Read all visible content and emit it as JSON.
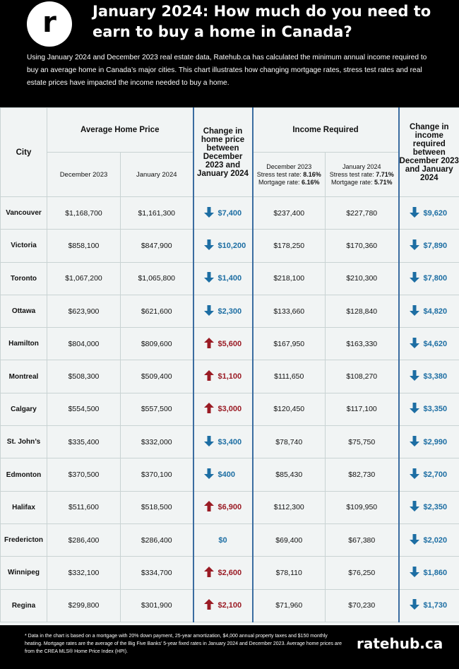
{
  "header": {
    "logo_letter": "r",
    "title": "January 2024: How much do you need to earn to buy a home in Canada?",
    "intro": "Using January 2024 and December 2023 real estate data, Ratehub.ca has calculated the minimum annual income required to buy an average home in Canada’s major cities. This chart illustrates how changing mortgage rates, stress test rates and real estate prices have impacted the income needed to buy a home."
  },
  "table": {
    "headers": {
      "city": "City",
      "avg_price": "Average Home Price",
      "dec_2023": "December 2023",
      "jan_2024": "January 2024",
      "price_change": "Change in home price between December 2023 and January 2024",
      "income_required": "Income Required",
      "inc_dec": {
        "month": "December 2023",
        "stress_label": "Stress test rate:",
        "stress_value": "8.16%",
        "mortgage_label": "Mortgage rate:",
        "mortgage_value": "6.16%"
      },
      "inc_jan": {
        "month": "January 2024",
        "stress_label": "Stress test rate:",
        "stress_value": "7.71%",
        "mortgage_label": "Mortgage rate:",
        "mortgage_value": "5.71%"
      },
      "income_change": "Change in income required between December 2023 and January 2024"
    },
    "colors": {
      "decrease": "#1d6ea3",
      "increase": "#9a1b24"
    }
  },
  "chart_data": {
    "type": "table",
    "title": "January 2024: How much do you need to earn to buy a home in Canada?",
    "columns": [
      "City",
      "Average Home Price December 2023",
      "Average Home Price January 2024",
      "Change in home price",
      "Income Required December 2023",
      "Income Required January 2024",
      "Change in income required"
    ],
    "rows": [
      {
        "city": "Vancouver",
        "price_dec": "$1,168,700",
        "price_jan": "$1,161,300",
        "price_change": "$7,400",
        "price_dir": "down",
        "income_dec": "$237,400",
        "income_jan": "$227,780",
        "income_change": "$9,620",
        "income_dir": "down"
      },
      {
        "city": "Victoria",
        "price_dec": "$858,100",
        "price_jan": "$847,900",
        "price_change": "$10,200",
        "price_dir": "down",
        "income_dec": "$178,250",
        "income_jan": "$170,360",
        "income_change": "$7,890",
        "income_dir": "down"
      },
      {
        "city": "Toronto",
        "price_dec": "$1,067,200",
        "price_jan": "$1,065,800",
        "price_change": "$1,400",
        "price_dir": "down",
        "income_dec": "$218,100",
        "income_jan": "$210,300",
        "income_change": "$7,800",
        "income_dir": "down"
      },
      {
        "city": "Ottawa",
        "price_dec": "$623,900",
        "price_jan": "$621,600",
        "price_change": "$2,300",
        "price_dir": "down",
        "income_dec": "$133,660",
        "income_jan": "$128,840",
        "income_change": "$4,820",
        "income_dir": "down"
      },
      {
        "city": "Hamilton",
        "price_dec": "$804,000",
        "price_jan": "$809,600",
        "price_change": "$5,600",
        "price_dir": "up",
        "income_dec": "$167,950",
        "income_jan": "$163,330",
        "income_change": "$4,620",
        "income_dir": "down"
      },
      {
        "city": "Montreal",
        "price_dec": "$508,300",
        "price_jan": "$509,400",
        "price_change": "$1,100",
        "price_dir": "up",
        "income_dec": "$111,650",
        "income_jan": "$108,270",
        "income_change": "$3,380",
        "income_dir": "down"
      },
      {
        "city": "Calgary",
        "price_dec": "$554,500",
        "price_jan": "$557,500",
        "price_change": "$3,000",
        "price_dir": "up",
        "income_dec": "$120,450",
        "income_jan": "$117,100",
        "income_change": "$3,350",
        "income_dir": "down"
      },
      {
        "city": "St. John’s",
        "price_dec": "$335,400",
        "price_jan": "$332,000",
        "price_change": "$3,400",
        "price_dir": "down",
        "income_dec": "$78,740",
        "income_jan": "$75,750",
        "income_change": "$2,990",
        "income_dir": "down"
      },
      {
        "city": "Edmonton",
        "price_dec": "$370,500",
        "price_jan": "$370,100",
        "price_change": "$400",
        "price_dir": "down",
        "income_dec": "$85,430",
        "income_jan": "$82,730",
        "income_change": "$2,700",
        "income_dir": "down"
      },
      {
        "city": "Halifax",
        "price_dec": "$511,600",
        "price_jan": "$518,500",
        "price_change": "$6,900",
        "price_dir": "up",
        "income_dec": "$112,300",
        "income_jan": "$109,950",
        "income_change": "$2,350",
        "income_dir": "down"
      },
      {
        "city": "Fredericton",
        "price_dec": "$286,400",
        "price_jan": "$286,400",
        "price_change": "$0",
        "price_dir": "none",
        "income_dec": "$69,400",
        "income_jan": "$67,380",
        "income_change": "$2,020",
        "income_dir": "down"
      },
      {
        "city": "Winnipeg",
        "price_dec": "$332,100",
        "price_jan": "$334,700",
        "price_change": "$2,600",
        "price_dir": "up",
        "income_dec": "$78,110",
        "income_jan": "$76,250",
        "income_change": "$1,860",
        "income_dir": "down"
      },
      {
        "city": "Regina",
        "price_dec": "$299,800",
        "price_jan": "$301,900",
        "price_change": "$2,100",
        "price_dir": "up",
        "income_dec": "$71,960",
        "income_jan": "$70,230",
        "income_change": "$1,730",
        "income_dir": "down"
      }
    ]
  },
  "footer": {
    "note": "* Data in the chart is based on a mortgage with 20% down payment, 25-year amortization, $4,000 annual property taxes and $150 monthly heating. Mortgage rates are the average of the Big Five Banks’ 5-year fixed rates in January 2024 and December 2023. Average home prices are from the CREA MLS® Home Price Index (HPI).",
    "brand": "ratehub.ca"
  }
}
